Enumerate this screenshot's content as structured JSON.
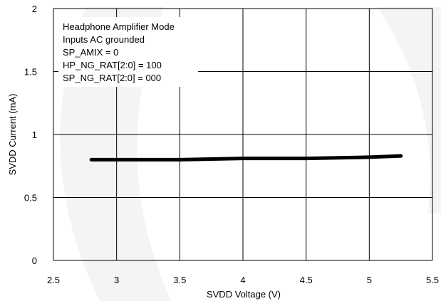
{
  "chart_data": {
    "type": "line",
    "title": "",
    "xlabel": "SVDD Voltage (V)",
    "ylabel": "SVDD Current (mA)",
    "xlim": [
      2.5,
      5.5
    ],
    "ylim": [
      0,
      2
    ],
    "x_ticks": [
      2.5,
      3,
      3.5,
      4,
      4.5,
      5,
      5.5
    ],
    "x_tick_labels": [
      "2.5",
      "3",
      "3.5",
      "4",
      "4.5",
      "5",
      "5.5"
    ],
    "y_ticks": [
      0,
      0.5,
      1,
      1.5,
      2
    ],
    "y_tick_labels": [
      "0",
      "0.5",
      "1",
      "1.5",
      "2"
    ],
    "grid": true,
    "legend": "none",
    "annotations": [
      "Headphone Amplifier Mode",
      "Inputs AC grounded",
      "SP_AMIX = 0",
      "HP_NG_RAT[2:0] = 100",
      "SP_NG_RAT[2:0] = 000"
    ],
    "series": [
      {
        "color": "#000000",
        "x": [
          2.8,
          3.0,
          3.5,
          4.0,
          4.5,
          5.0,
          5.25
        ],
        "y": [
          0.8,
          0.8,
          0.8,
          0.81,
          0.81,
          0.82,
          0.83
        ]
      }
    ]
  }
}
